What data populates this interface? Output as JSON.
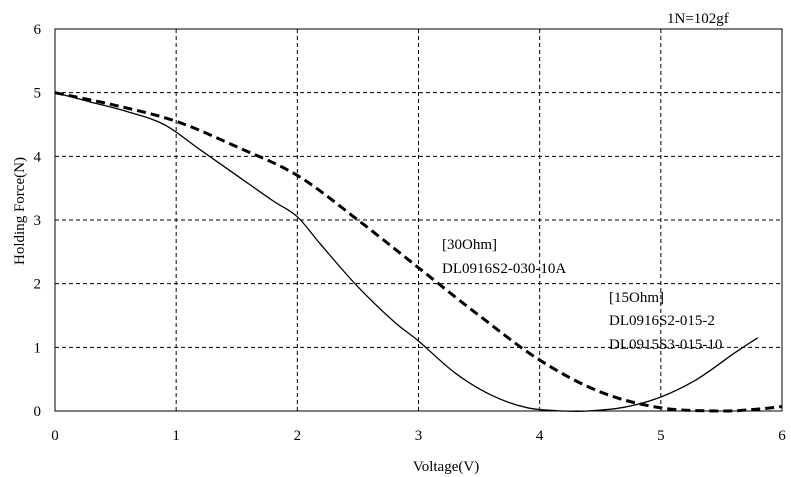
{
  "chart_data": {
    "type": "line",
    "title": "",
    "xlabel": "Voltage(V)",
    "ylabel": "Holding Force(N)",
    "xlim": [
      0,
      6
    ],
    "ylim": [
      0,
      6
    ],
    "x_ticks": [
      "0",
      "1",
      "2",
      "3",
      "4",
      "5",
      "6"
    ],
    "y_ticks": [
      "0",
      "1",
      "2",
      "3",
      "4",
      "5",
      "6"
    ],
    "grid": true,
    "grid_style": "dashed",
    "annotations": {
      "unit_note": "1N=102gf",
      "label_30_line1": "[30Ohm]",
      "label_30_line2": "DL0916S2-030-10A",
      "label_15_line1": "[15Ohm]",
      "label_15_line2": "DL0916S2-015-2",
      "label_15_line3": "DL0915S3-015-10"
    },
    "series": [
      {
        "style": "solid",
        "color": "#000000",
        "x": [
          0,
          0.3,
          0.6,
          0.9,
          1.2,
          1.5,
          1.8,
          2.0,
          2.2,
          2.5,
          2.8,
          3.0,
          3.3,
          3.6,
          3.9,
          4.2,
          4.4,
          4.7,
          5.0,
          5.3,
          5.6,
          5.8
        ],
        "y": [
          5.0,
          4.85,
          4.7,
          4.5,
          4.1,
          3.7,
          3.3,
          3.05,
          2.6,
          1.95,
          1.4,
          1.1,
          0.6,
          0.25,
          0.05,
          0.0,
          0.0,
          0.06,
          0.22,
          0.5,
          0.9,
          1.15
        ]
      },
      {
        "style": "dashed",
        "color": "#000000",
        "x": [
          0,
          0.5,
          1.0,
          1.5,
          2.0,
          2.5,
          3.0,
          3.5,
          4.0,
          4.5,
          5.0,
          5.5,
          5.8,
          6.0
        ],
        "y": [
          5.0,
          4.8,
          4.55,
          4.15,
          3.7,
          3.0,
          2.25,
          1.5,
          0.8,
          0.3,
          0.05,
          0.0,
          0.03,
          0.07
        ]
      }
    ]
  }
}
